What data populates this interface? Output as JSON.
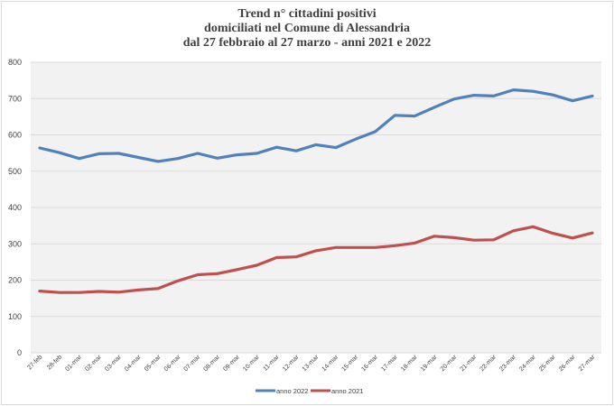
{
  "title_lines": [
    "Trend n° cittadini positivi",
    "domiciliati nel Comune di Alessandria",
    "dal 27 febbraio al 27 marzo - anni 2021 e 2022"
  ],
  "chart_data": {
    "type": "line",
    "title": "Trend n° cittadini positivi domiciliati nel Comune di Alessandria dal 27 febbraio al 27 marzo - anni 2021 e 2022",
    "categories": [
      "27-feb",
      "28-feb",
      "01-mar",
      "02-mar",
      "03-mar",
      "04-mar",
      "05-mar",
      "06-mar",
      "07-mar",
      "08-mar",
      "09-mar",
      "10-mar",
      "11-mar",
      "12-mar",
      "13-mar",
      "14-mar",
      "15-mar",
      "16-mar",
      "17-mar",
      "18-mar",
      "19-mar",
      "20-mar",
      "21-mar",
      "22-mar",
      "23-mar",
      "24-mar",
      "25-mar",
      "26-mar",
      "27-mar"
    ],
    "series": [
      {
        "name": "anno 2022",
        "color": "#4f81bd",
        "values": [
          564,
          551,
          535,
          548,
          549,
          538,
          527,
          535,
          549,
          536,
          545,
          549,
          566,
          556,
          573,
          565,
          588,
          609,
          654,
          652,
          676,
          699,
          709,
          707,
          724,
          720,
          710,
          694,
          707
        ]
      },
      {
        "name": "anno 2021",
        "color": "#c0504d",
        "values": [
          170,
          166,
          166,
          169,
          167,
          173,
          177,
          198,
          215,
          218,
          229,
          241,
          262,
          264,
          281,
          290,
          290,
          290,
          295,
          302,
          321,
          317,
          310,
          311,
          336,
          347,
          329,
          316,
          330
        ]
      }
    ],
    "yticks": [
      0,
      100,
      200,
      300,
      400,
      500,
      600,
      700,
      800
    ],
    "ylim": [
      0,
      800
    ],
    "grid": true,
    "plot_background": "#f2f2f2",
    "legend_position": "bottom"
  }
}
